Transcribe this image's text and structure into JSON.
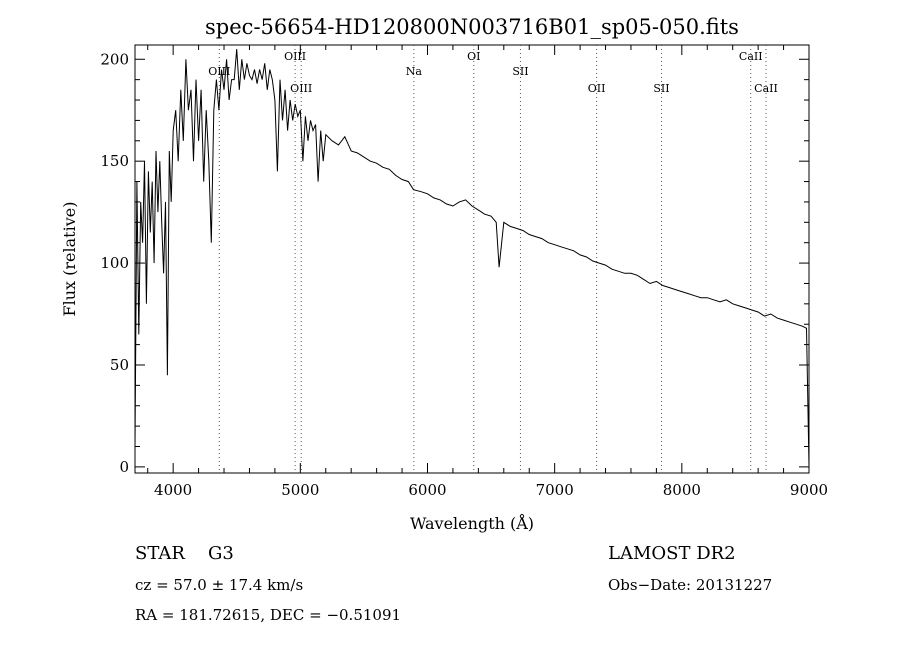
{
  "chart_data": {
    "type": "line",
    "title": "spec-56654-HD120800N003716B01_sp05-050.fits",
    "xlabel": "Wavelength (Å)",
    "ylabel": "Flux (relative)",
    "xlim": [
      3700,
      9000
    ],
    "ylim": [
      -3,
      207
    ],
    "x_ticks": [
      4000,
      5000,
      6000,
      7000,
      8000,
      9000
    ],
    "y_ticks": [
      0,
      50,
      100,
      150,
      200
    ],
    "grid": false,
    "series": [
      {
        "x": [
          3700,
          3715,
          3730,
          3745,
          3760,
          3775,
          3790,
          3805,
          3820,
          3835,
          3850,
          3865,
          3880,
          3895,
          3910,
          3925,
          3940,
          3955,
          3970,
          3985,
          4000,
          4020,
          4040,
          4060,
          4080,
          4100,
          4120,
          4140,
          4160,
          4180,
          4200,
          4220,
          4240,
          4260,
          4280,
          4300,
          4320,
          4340,
          4360,
          4380,
          4400,
          4420,
          4440,
          4460,
          4480,
          4500,
          4520,
          4540,
          4560,
          4580,
          4600,
          4620,
          4640,
          4660,
          4680,
          4700,
          4720,
          4740,
          4760,
          4780,
          4800,
          4820,
          4840,
          4860,
          4880,
          4900,
          4920,
          4940,
          4960,
          4980,
          5000,
          5020,
          5040,
          5060,
          5080,
          5100,
          5120,
          5140,
          5160,
          5180,
          5200,
          5250,
          5300,
          5350,
          5400,
          5450,
          5500,
          5550,
          5600,
          5650,
          5700,
          5750,
          5800,
          5850,
          5890,
          5950,
          6000,
          6050,
          6100,
          6150,
          6200,
          6250,
          6300,
          6350,
          6400,
          6450,
          6500,
          6540,
          6563,
          6600,
          6650,
          6700,
          6750,
          6800,
          6850,
          6900,
          6950,
          7000,
          7050,
          7100,
          7150,
          7200,
          7250,
          7300,
          7350,
          7400,
          7450,
          7500,
          7550,
          7600,
          7650,
          7700,
          7750,
          7800,
          7850,
          7900,
          7950,
          8000,
          8050,
          8100,
          8150,
          8200,
          8250,
          8300,
          8350,
          8400,
          8450,
          8500,
          8550,
          8600,
          8650,
          8700,
          8750,
          8800,
          8850,
          8900,
          8950,
          8980,
          9000
        ],
        "y": [
          10,
          140,
          65,
          130,
          110,
          150,
          80,
          145,
          115,
          140,
          100,
          155,
          125,
          150,
          120,
          95,
          130,
          45,
          155,
          130,
          165,
          175,
          150,
          185,
          160,
          200,
          175,
          185,
          150,
          190,
          160,
          185,
          140,
          175,
          150,
          110,
          175,
          190,
          175,
          195,
          185,
          200,
          180,
          190,
          190,
          205,
          185,
          200,
          190,
          198,
          192,
          190,
          195,
          188,
          195,
          190,
          198,
          185,
          195,
          190,
          180,
          145,
          190,
          170,
          185,
          165,
          180,
          170,
          178,
          172,
          175,
          150,
          172,
          160,
          170,
          165,
          168,
          140,
          165,
          150,
          163,
          160,
          158,
          162,
          155,
          154,
          152,
          150,
          149,
          147,
          146,
          143,
          141,
          140,
          136,
          135,
          134,
          132,
          131,
          129,
          128,
          130,
          131,
          128,
          126,
          124,
          123,
          120,
          98,
          120,
          118,
          117,
          116,
          114,
          113,
          112,
          110,
          109,
          108,
          107,
          106,
          104,
          103,
          101,
          100,
          99,
          97,
          96,
          95,
          95,
          94,
          92,
          90,
          91,
          89,
          88,
          87,
          86,
          85,
          84,
          83,
          83,
          82,
          81,
          82,
          80,
          79,
          78,
          77,
          76,
          74,
          75,
          73,
          72,
          71,
          70,
          69,
          68,
          0
        ]
      }
    ],
    "spectral_lines": [
      {
        "name": "OIII",
        "x": 4363
      },
      {
        "name": "OIII",
        "x": 4959
      },
      {
        "name": "OIII",
        "x": 5007
      },
      {
        "name": "Na",
        "x": 5893
      },
      {
        "name": "OI",
        "x": 6364
      },
      {
        "name": "SII",
        "x": 6731
      },
      {
        "name": "OII",
        "x": 7330
      },
      {
        "name": "SII",
        "x": 7840
      },
      {
        "name": "CaII",
        "x": 8542
      },
      {
        "name": "CaII",
        "x": 8662
      }
    ]
  },
  "info": {
    "class_label": "STAR",
    "subclass": "G3",
    "cz": "cz = 57.0 ± 17.4 km/s",
    "coords": "RA = 181.72615, DEC =  −0.51091",
    "survey": "LAMOST DR2",
    "obs_date": "Obs−Date: 20131227"
  }
}
